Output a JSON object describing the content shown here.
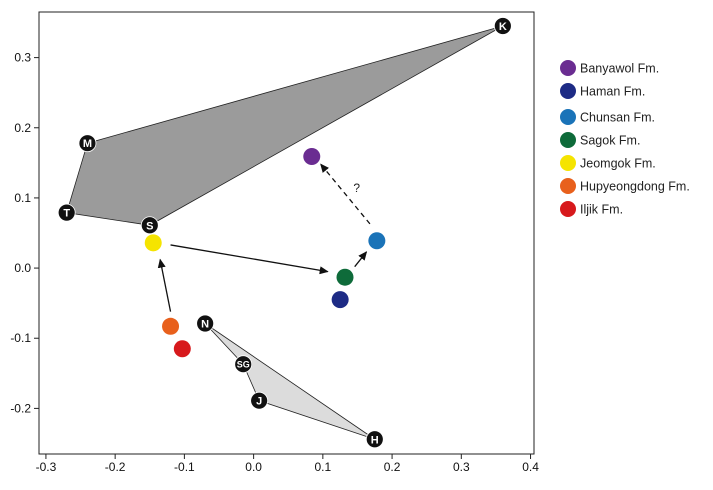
{
  "chart_data": {
    "type": "scatter",
    "title": "",
    "xlabel": "",
    "ylabel": "",
    "xlim": [
      -0.31,
      0.405
    ],
    "ylim": [
      -0.265,
      0.365
    ],
    "grid": false,
    "legend_position": "right",
    "x_ticks": [
      -0.3,
      -0.2,
      -0.1,
      0,
      0.1,
      0.2,
      0.3,
      0.4
    ],
    "x_tick_labels": [
      "-0.3",
      "-0.2",
      "-0.1",
      "0.0",
      "0.1",
      "0.2",
      "0.3",
      "0.4"
    ],
    "y_ticks": [
      -0.2,
      -0.1,
      0,
      0.1,
      0.2,
      0.3
    ],
    "y_tick_labels": [
      "-0.2",
      "-0.1",
      "0.0",
      "0.1",
      "0.2",
      "0.3"
    ],
    "series": [
      {
        "name": "Banyawol Fm.",
        "color": "#6a2c91",
        "x": 0.084,
        "y": 0.159
      },
      {
        "name": "Haman Fm.",
        "color": "#1d2b85",
        "x": 0.125,
        "y": -0.045
      },
      {
        "name": "Chunsan Fm.",
        "color": "#1a73b8",
        "x": 0.178,
        "y": 0.039
      },
      {
        "name": "Sagok Fm.",
        "color": "#0e6b3a",
        "x": 0.132,
        "y": -0.013
      },
      {
        "name": "Jeomgok Fm.",
        "color": "#f5e400",
        "x": -0.145,
        "y": 0.036
      },
      {
        "name": "Hupyeongdong Fm.",
        "color": "#e8601c",
        "x": -0.12,
        "y": -0.083
      },
      {
        "name": "Iljik Fm.",
        "color": "#d7191c",
        "x": -0.103,
        "y": -0.115
      }
    ],
    "reference_points": [
      {
        "label": "K",
        "x": 0.36,
        "y": 0.345
      },
      {
        "label": "M",
        "x": -0.24,
        "y": 0.178
      },
      {
        "label": "T",
        "x": -0.27,
        "y": 0.079
      },
      {
        "label": "S",
        "x": -0.15,
        "y": 0.061
      },
      {
        "label": "N",
        "x": -0.07,
        "y": -0.079
      },
      {
        "label": "SG",
        "x": -0.015,
        "y": -0.137
      },
      {
        "label": "J",
        "x": 0.008,
        "y": -0.189
      },
      {
        "label": "H",
        "x": 0.175,
        "y": -0.244
      }
    ],
    "polygons": [
      {
        "vertices": [
          "K",
          "M",
          "T",
          "S"
        ],
        "fill": "#9b9b9b"
      },
      {
        "vertices": [
          "N",
          "H",
          "J",
          "SG"
        ],
        "fill": "#dcdcdc"
      }
    ],
    "arrows": [
      {
        "from": [
          -0.12,
          -0.062
        ],
        "to": [
          -0.135,
          0.012
        ],
        "style": "solid"
      },
      {
        "from": [
          -0.12,
          0.033
        ],
        "to": [
          0.107,
          -0.005
        ],
        "style": "solid"
      },
      {
        "from": [
          0.146,
          0.002
        ],
        "to": [
          0.163,
          0.023
        ],
        "style": "solid"
      },
      {
        "from": [
          0.168,
          0.063
        ],
        "to": [
          0.097,
          0.148
        ],
        "style": "dashed",
        "label": "?"
      }
    ]
  }
}
